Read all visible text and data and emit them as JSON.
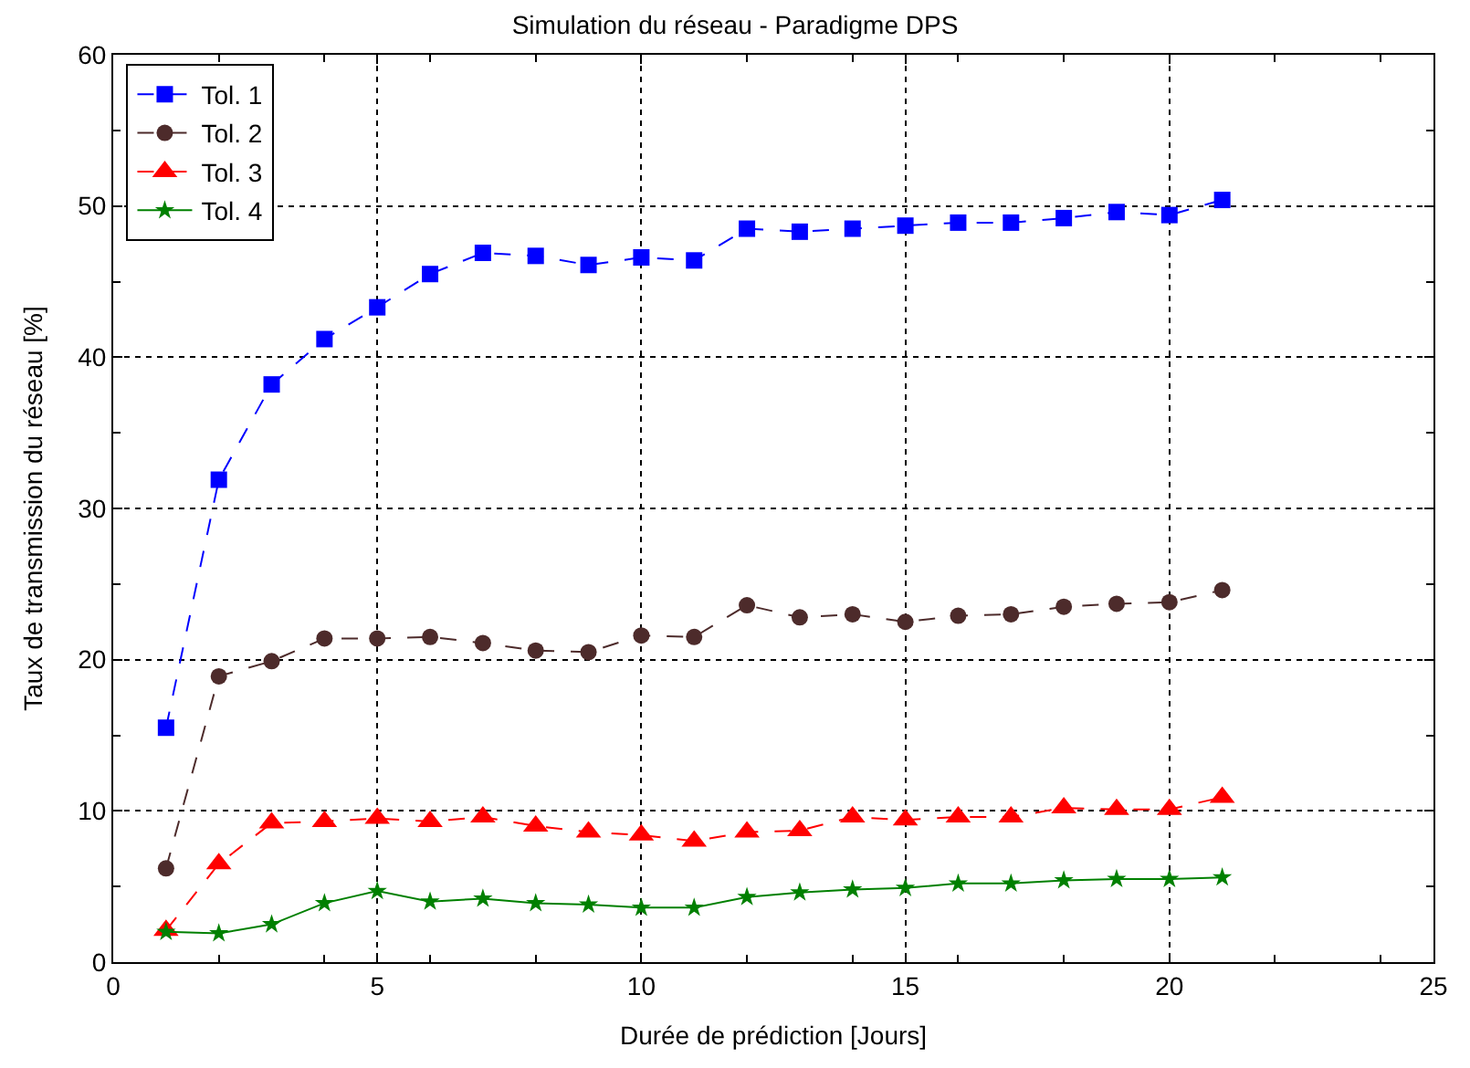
{
  "chart_data": {
    "type": "line",
    "title": "Simulation du réseau - Paradigme DPS",
    "xlabel": "Durée de prédiction [Jours]",
    "ylabel": "Taux de transmission du réseau [%]",
    "x": [
      1,
      2,
      3,
      4,
      5,
      6,
      7,
      8,
      9,
      10,
      11,
      12,
      13,
      14,
      15,
      16,
      17,
      18,
      19,
      20,
      21
    ],
    "series": [
      {
        "name": "Tol. 1",
        "color": "#0000ff",
        "marker": "square",
        "line_style": "dashed",
        "values": [
          15.5,
          31.9,
          38.2,
          41.2,
          43.3,
          45.5,
          46.9,
          46.7,
          46.1,
          46.6,
          46.4,
          48.5,
          48.3,
          48.5,
          48.7,
          48.9,
          48.9,
          49.2,
          49.6,
          49.4,
          50.4
        ]
      },
      {
        "name": "Tol. 2",
        "color": "#4d2b2b",
        "marker": "circle",
        "line_style": "dashed",
        "values": [
          6.2,
          18.9,
          19.9,
          21.4,
          21.4,
          21.5,
          21.1,
          20.6,
          20.5,
          21.6,
          21.5,
          23.6,
          22.8,
          23.0,
          22.5,
          22.9,
          23.0,
          23.5,
          23.7,
          23.8,
          24.6
        ]
      },
      {
        "name": "Tol. 3",
        "color": "#ff0000",
        "marker": "triangle",
        "line_style": "dashed",
        "values": [
          2.1,
          6.5,
          9.2,
          9.3,
          9.5,
          9.3,
          9.6,
          9.0,
          8.6,
          8.4,
          8.0,
          8.6,
          8.7,
          9.6,
          9.4,
          9.6,
          9.6,
          10.2,
          10.1,
          10.1,
          10.9
        ]
      },
      {
        "name": "Tol. 4",
        "color": "#008000",
        "marker": "star",
        "line_style": "solid",
        "values": [
          2.0,
          1.9,
          2.5,
          3.9,
          4.7,
          4.0,
          4.2,
          3.9,
          3.8,
          3.6,
          3.6,
          4.3,
          4.6,
          4.8,
          4.9,
          5.2,
          5.2,
          5.4,
          5.5,
          5.5,
          5.6
        ]
      }
    ],
    "xlim": [
      0,
      25
    ],
    "xticks": [
      0,
      5,
      10,
      15,
      20,
      25
    ],
    "ylim": [
      0,
      60
    ],
    "yticks": [
      0,
      10,
      20,
      30,
      40,
      50,
      60
    ],
    "grid": true,
    "legend": "top left"
  }
}
